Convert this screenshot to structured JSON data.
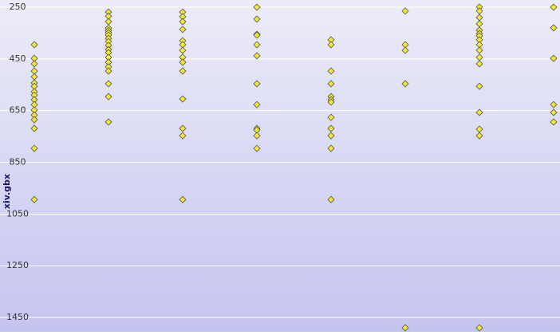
{
  "chart_data": {
    "type": "strip",
    "y_label": "xiv.gbx",
    "categories": [
      null,
      null,
      null,
      null,
      null,
      null,
      null,
      null
    ],
    "series": [
      {
        "color": "#f0e832",
        "values": [
          [
            395,
            448,
            469,
            497,
            519,
            543,
            556,
            577,
            590,
            608,
            627,
            648,
            667,
            685,
            719,
            796,
            994
          ],
          [
            269,
            285,
            306,
            331,
            340,
            349,
            358,
            371,
            383,
            398,
            414,
            426,
            444,
            463,
            481,
            497,
            546,
            596,
            694
          ],
          [
            269,
            287,
            306,
            336,
            380,
            395,
            417,
            444,
            463,
            497,
            605,
            719,
            747,
            994
          ],
          [
            250,
            296,
            355,
            358,
            395,
            438,
            546,
            627,
            719,
            725,
            747,
            796
          ],
          [
            376,
            395,
            497,
            546,
            596,
            608,
            617,
            676,
            719,
            747,
            796,
            994
          ],
          [
            265,
            395,
            417,
            546,
            1490
          ],
          [
            250,
            265,
            290,
            314,
            339,
            352,
            361,
            376,
            395,
            417,
            444,
            469,
            556,
            657,
            722,
            747,
            1490
          ],
          [
            250,
            330,
            448,
            627,
            657,
            694
          ]
        ]
      }
    ],
    "ylim": [
      250,
      1490
    ],
    "yticks": [
      250,
      450,
      650,
      850,
      1050,
      1250,
      1450
    ],
    "grid": true
  }
}
